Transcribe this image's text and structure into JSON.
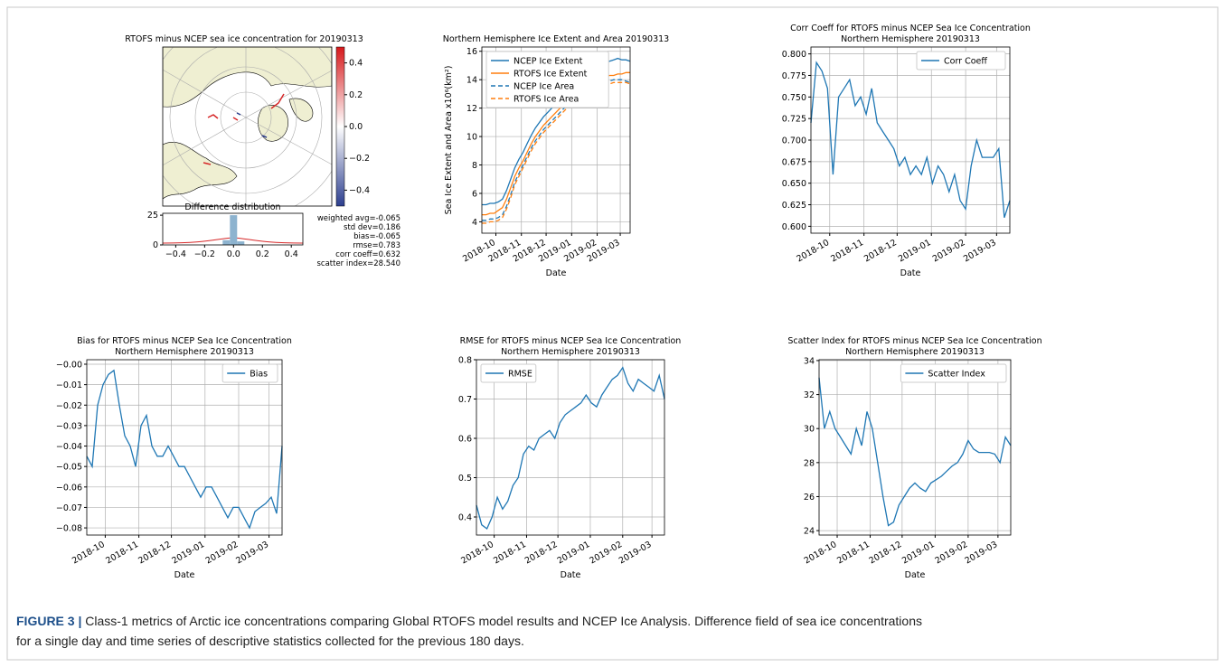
{
  "chart_data": [
    {
      "type": "map",
      "title": [
        "RTOFS minus NCEP sea ice concentration for 20190313"
      ],
      "colorbar": {
        "lim": [
          -0.5,
          0.5
        ],
        "ticks": [
          0.4,
          0.2,
          {
            "value": 0,
            "label": "0.0"
          },
          {
            "value": -0.2,
            "label": "−0.2"
          },
          {
            "value": -0.4,
            "label": "−0.4"
          }
        ]
      },
      "histogram": {
        "type": "histogram",
        "title": "Difference distribution",
        "color": "#8db3cf",
        "bins": [
          -0.475,
          -0.425,
          -0.375,
          -0.325,
          -0.275,
          -0.225,
          -0.175,
          -0.125,
          -0.075,
          -0.025,
          0.025,
          0.075,
          0.125,
          0.175,
          0.225,
          0.275,
          0.325,
          0.375,
          0.425,
          0.475
        ],
        "counts": [
          0,
          0,
          0,
          0,
          0,
          0,
          0,
          0,
          4,
          25,
          3,
          0,
          0,
          0,
          0,
          0,
          0,
          0,
          0
        ],
        "xlim": [
          -0.49,
          0.48
        ],
        "ylim": [
          0,
          26.6
        ],
        "xticks": [
          {
            "value": -0.4,
            "label": "−0.4"
          },
          {
            "value": -0.2,
            "label": "−0.2"
          },
          {
            "value": 0,
            "label": "0.0"
          },
          0.2,
          0.4
        ],
        "yticks": [
          0,
          25
        ]
      },
      "stats": [
        "weighted avg=-0.065",
        "std dev=0.186",
        "bias=-0.065",
        "rmse=0.783",
        "corr coeff=0.632",
        "scatter index=28.540"
      ]
    },
    {
      "type": "line",
      "title": [
        "Northern Hemisphere Ice Extent and Area 20190313"
      ],
      "xlabel": "Date",
      "ylabel": "Sea Ice Extent and Area x10⁶(km²)",
      "x": [
        0,
        5,
        10,
        15,
        20,
        25,
        30,
        35,
        40,
        45,
        50,
        55,
        60,
        65,
        70,
        75,
        80,
        85,
        90,
        95,
        100,
        105,
        110,
        115,
        120,
        125,
        130,
        135,
        140,
        145,
        150,
        155,
        160,
        165,
        170,
        175,
        180
      ],
      "xlim": [
        0,
        180
      ],
      "xticks": [
        {
          "value": 17,
          "label": "2018-10"
        },
        {
          "value": 48,
          "label": "2018-11"
        },
        {
          "value": 78,
          "label": "2018-12"
        },
        {
          "value": 109,
          "label": "2019-01"
        },
        {
          "value": 140,
          "label": "2019-02"
        },
        {
          "value": 168,
          "label": "2019-03"
        }
      ],
      "ylim": [
        3.2,
        16.3
      ],
      "yticks": [
        4,
        6,
        8,
        10,
        12,
        14,
        16
      ],
      "grid": true,
      "legend": "upper-left",
      "series": [
        {
          "name": "NCEP Ice Extent",
          "color": "#1f77b4",
          "linestyle": "solid",
          "values": [
            5.2,
            5.2,
            5.3,
            5.3,
            5.4,
            5.6,
            6.2,
            7.0,
            7.8,
            8.4,
            8.9,
            9.5,
            10.1,
            10.6,
            11.0,
            11.4,
            11.7,
            12.0,
            12.3,
            12.6,
            12.9,
            13.2,
            13.6,
            13.9,
            14.2,
            14.5,
            14.7,
            14.9,
            15.0,
            15.1,
            15.2,
            15.3,
            15.4,
            15.5,
            15.4,
            15.4,
            15.3
          ]
        },
        {
          "name": "RTOFS Ice Extent",
          "color": "#ff7f0e",
          "linestyle": "solid",
          "values": [
            4.5,
            4.5,
            4.6,
            4.6,
            4.8,
            5.0,
            5.6,
            6.4,
            7.2,
            7.8,
            8.3,
            8.9,
            9.5,
            10.0,
            10.4,
            10.8,
            11.1,
            11.4,
            11.7,
            12.0,
            12.3,
            12.6,
            12.9,
            13.2,
            13.5,
            13.7,
            13.9,
            14.0,
            14.1,
            14.2,
            14.2,
            14.3,
            14.3,
            14.4,
            14.4,
            14.5,
            14.5
          ]
        },
        {
          "name": "NCEP Ice Area",
          "color": "#1f77b4",
          "linestyle": "dashed",
          "values": [
            4.1,
            4.1,
            4.2,
            4.2,
            4.3,
            4.5,
            5.1,
            5.9,
            6.8,
            7.4,
            8.0,
            8.6,
            9.2,
            9.7,
            10.1,
            10.5,
            10.8,
            11.1,
            11.4,
            11.7,
            12.0,
            12.3,
            12.6,
            12.9,
            13.2,
            13.4,
            13.5,
            13.6,
            13.7,
            13.8,
            13.9,
            13.9,
            14.0,
            14.0,
            14.0,
            13.9,
            13.8
          ]
        },
        {
          "name": "RTOFS Ice Area",
          "color": "#ff7f0e",
          "linestyle": "dashed",
          "values": [
            3.9,
            3.9,
            4.0,
            4.0,
            4.1,
            4.3,
            4.9,
            5.7,
            6.6,
            7.2,
            7.8,
            8.4,
            9.0,
            9.5,
            9.9,
            10.3,
            10.6,
            10.9,
            11.2,
            11.5,
            11.8,
            12.1,
            12.4,
            12.7,
            13.0,
            13.2,
            13.3,
            13.4,
            13.5,
            13.6,
            13.7,
            13.7,
            13.8,
            13.8,
            13.8,
            13.8,
            13.7
          ]
        }
      ]
    },
    {
      "type": "line",
      "title": [
        "Corr Coeff for RTOFS minus NCEP Sea Ice Concentration",
        "Northern Hemisphere 20190313"
      ],
      "xlabel": "Date",
      "x": [
        0,
        5,
        10,
        15,
        20,
        25,
        30,
        35,
        40,
        45,
        50,
        55,
        60,
        65,
        70,
        75,
        80,
        85,
        90,
        95,
        100,
        105,
        110,
        115,
        120,
        125,
        130,
        135,
        140,
        145,
        150,
        155,
        160,
        165,
        170,
        175,
        180
      ],
      "xlim": [
        0,
        180
      ],
      "xticks": [
        {
          "value": 17,
          "label": "2018-10"
        },
        {
          "value": 48,
          "label": "2018-11"
        },
        {
          "value": 78,
          "label": "2018-12"
        },
        {
          "value": 109,
          "label": "2019-01"
        },
        {
          "value": 140,
          "label": "2019-02"
        },
        {
          "value": 168,
          "label": "2019-03"
        }
      ],
      "ylim": [
        0.592,
        0.808
      ],
      "yticks": [
        {
          "value": 0.6,
          "label": "0.600"
        },
        {
          "value": 0.625,
          "label": "0.625"
        },
        {
          "value": 0.65,
          "label": "0.650"
        },
        {
          "value": 0.675,
          "label": "0.675"
        },
        {
          "value": 0.7,
          "label": "0.700"
        },
        {
          "value": 0.725,
          "label": "0.725"
        },
        {
          "value": 0.75,
          "label": "0.750"
        },
        {
          "value": 0.775,
          "label": "0.775"
        },
        {
          "value": 0.8,
          "label": "0.800"
        }
      ],
      "grid": true,
      "legend": "upper-right",
      "series": [
        {
          "name": "Corr Coeff",
          "color": "#1f77b4",
          "linestyle": "solid",
          "values": [
            0.72,
            0.79,
            0.78,
            0.76,
            0.66,
            0.75,
            0.76,
            0.77,
            0.74,
            0.75,
            0.73,
            0.76,
            0.72,
            0.71,
            0.7,
            0.69,
            0.67,
            0.68,
            0.66,
            0.67,
            0.66,
            0.68,
            0.65,
            0.67,
            0.66,
            0.64,
            0.66,
            0.63,
            0.62,
            0.67,
            0.7,
            0.68,
            0.68,
            0.68,
            0.69,
            0.61,
            0.63
          ]
        }
      ]
    },
    {
      "type": "line",
      "title": [
        "Bias for RTOFS minus NCEP Sea Ice Concentration",
        "Northern Hemisphere 20190313"
      ],
      "xlabel": "Date",
      "x": [
        0,
        5,
        10,
        15,
        20,
        25,
        30,
        35,
        40,
        45,
        50,
        55,
        60,
        65,
        70,
        75,
        80,
        85,
        90,
        95,
        100,
        105,
        110,
        115,
        120,
        125,
        130,
        135,
        140,
        145,
        150,
        155,
        160,
        165,
        170,
        175,
        180
      ],
      "xlim": [
        0,
        180
      ],
      "xticks": [
        {
          "value": 17,
          "label": "2018-10"
        },
        {
          "value": 48,
          "label": "2018-11"
        },
        {
          "value": 78,
          "label": "2018-12"
        },
        {
          "value": 109,
          "label": "2019-01"
        },
        {
          "value": 140,
          "label": "2019-02"
        },
        {
          "value": 168,
          "label": "2019-03"
        }
      ],
      "ylim": [
        -0.0835,
        0.0022
      ],
      "yticks": [
        {
          "value": 0,
          "label": "−0.00"
        },
        {
          "value": -0.01,
          "label": "−0.01"
        },
        {
          "value": -0.02,
          "label": "−0.02"
        },
        {
          "value": -0.03,
          "label": "−0.03"
        },
        {
          "value": -0.04,
          "label": "−0.04"
        },
        {
          "value": -0.05,
          "label": "−0.05"
        },
        {
          "value": -0.06,
          "label": "−0.06"
        },
        {
          "value": -0.07,
          "label": "−0.07"
        },
        {
          "value": -0.08,
          "label": "−0.08"
        }
      ],
      "grid": true,
      "legend": "upper-right",
      "series": [
        {
          "name": "Bias",
          "color": "#1f77b4",
          "linestyle": "solid",
          "values": [
            -0.045,
            -0.05,
            -0.02,
            -0.01,
            -0.005,
            -0.003,
            -0.02,
            -0.035,
            -0.04,
            -0.05,
            -0.03,
            -0.025,
            -0.04,
            -0.045,
            -0.045,
            -0.04,
            -0.045,
            -0.05,
            -0.05,
            -0.055,
            -0.06,
            -0.065,
            -0.06,
            -0.06,
            -0.065,
            -0.07,
            -0.075,
            -0.07,
            -0.07,
            -0.075,
            -0.08,
            -0.072,
            -0.07,
            -0.068,
            -0.065,
            -0.073,
            -0.04
          ]
        }
      ]
    },
    {
      "type": "line",
      "title": [
        "RMSE for RTOFS minus NCEP Sea Ice Concentration",
        "Northern Hemisphere 20190313"
      ],
      "xlabel": "Date",
      "x": [
        0,
        5,
        10,
        15,
        20,
        25,
        30,
        35,
        40,
        45,
        50,
        55,
        60,
        65,
        70,
        75,
        80,
        85,
        90,
        95,
        100,
        105,
        110,
        115,
        120,
        125,
        130,
        135,
        140,
        145,
        150,
        155,
        160,
        165,
        170,
        175,
        180
      ],
      "xlim": [
        0,
        180
      ],
      "xticks": [
        {
          "value": 17,
          "label": "2018-10"
        },
        {
          "value": 48,
          "label": "2018-11"
        },
        {
          "value": 78,
          "label": "2018-12"
        },
        {
          "value": 109,
          "label": "2019-01"
        },
        {
          "value": 140,
          "label": "2019-02"
        },
        {
          "value": 168,
          "label": "2019-03"
        }
      ],
      "ylim": [
        0.354,
        0.8
      ],
      "yticks": [
        0.4,
        0.5,
        0.6,
        0.7,
        0.8
      ],
      "grid": true,
      "legend": "upper-left",
      "series": [
        {
          "name": "RMSE",
          "color": "#1f77b4",
          "linestyle": "solid",
          "values": [
            0.43,
            0.38,
            0.37,
            0.4,
            0.45,
            0.42,
            0.44,
            0.48,
            0.5,
            0.56,
            0.58,
            0.57,
            0.6,
            0.61,
            0.62,
            0.6,
            0.64,
            0.66,
            0.67,
            0.68,
            0.69,
            0.71,
            0.69,
            0.68,
            0.71,
            0.73,
            0.75,
            0.76,
            0.78,
            0.74,
            0.72,
            0.75,
            0.74,
            0.73,
            0.72,
            0.76,
            0.7
          ]
        }
      ]
    },
    {
      "type": "line",
      "title": [
        "Scatter Index for RTOFS minus NCEP Sea Ice Concentration",
        "Northern Hemisphere 20190313"
      ],
      "xlabel": "Date",
      "x": [
        0,
        5,
        10,
        15,
        20,
        25,
        30,
        35,
        40,
        45,
        50,
        55,
        60,
        65,
        70,
        75,
        80,
        85,
        90,
        95,
        100,
        105,
        110,
        115,
        120,
        125,
        130,
        135,
        140,
        145,
        150,
        155,
        160,
        165,
        170,
        175,
        180
      ],
      "xlim": [
        0,
        180
      ],
      "xticks": [
        {
          "value": 17,
          "label": "2018-10"
        },
        {
          "value": 48,
          "label": "2018-11"
        },
        {
          "value": 78,
          "label": "2018-12"
        },
        {
          "value": 109,
          "label": "2019-01"
        },
        {
          "value": 140,
          "label": "2019-02"
        },
        {
          "value": 168,
          "label": "2019-03"
        }
      ],
      "ylim": [
        23.74,
        34.05
      ],
      "yticks": [
        24,
        26,
        28,
        30,
        32,
        34
      ],
      "grid": true,
      "legend": "upper-right",
      "series": [
        {
          "name": "Scatter Index",
          "color": "#1f77b4",
          "linestyle": "solid",
          "values": [
            33,
            30,
            31,
            30,
            29.5,
            29,
            28.5,
            30,
            29,
            31,
            30,
            28,
            26,
            24.3,
            24.5,
            25.5,
            26,
            26.5,
            26.8,
            26.5,
            26.3,
            26.8,
            27,
            27.2,
            27.5,
            27.8,
            28,
            28.5,
            29.3,
            28.8,
            28.6,
            28.6,
            28.6,
            28.5,
            28,
            29.5,
            29
          ]
        }
      ]
    }
  ],
  "caption": {
    "label": "FIGURE 3 |",
    "lines": [
      "Class-1 metrics of Arctic ice concentrations comparing Global RTOFS model results and NCEP Ice Analysis. Difference field of sea ice concentrations",
      "for a single day and time series of descriptive statistics collected for the previous 180 days."
    ]
  }
}
